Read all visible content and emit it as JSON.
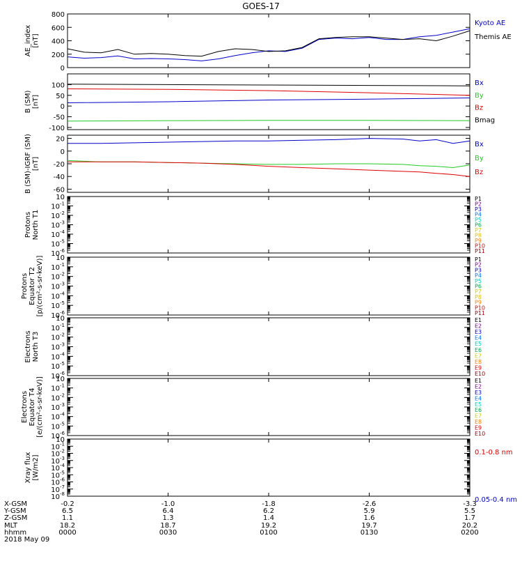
{
  "title": "GOES-17",
  "colors": {
    "black": "#000000",
    "red": "#e00000",
    "green": "#22cc22",
    "blue": "#0000cc",
    "axis": "#000000"
  },
  "chart_data": [
    {
      "id": "ae",
      "type": "line",
      "ylabel": "AE_index\n[nT]",
      "ylim": [
        0,
        800
      ],
      "yticks": [
        0,
        200,
        400,
        600,
        800
      ],
      "ytick_labels": [
        "0",
        "200",
        "400",
        "600",
        "800"
      ],
      "series": [
        {
          "name": "Kyoto AE",
          "color": "#0000cc",
          "x": [
            0,
            5,
            10,
            15,
            20,
            25,
            30,
            35,
            40,
            45,
            50,
            55,
            60,
            65,
            70,
            75,
            80,
            85,
            90,
            95,
            100,
            105,
            110,
            115,
            120
          ],
          "y": [
            160,
            140,
            150,
            175,
            130,
            135,
            130,
            120,
            100,
            130,
            180,
            220,
            250,
            240,
            290,
            420,
            440,
            430,
            450,
            420,
            420,
            460,
            480,
            530,
            580
          ]
        },
        {
          "name": "Themis AE",
          "color": "#000000",
          "x": [
            0,
            5,
            10,
            15,
            20,
            25,
            30,
            35,
            40,
            45,
            50,
            55,
            60,
            65,
            70,
            75,
            80,
            85,
            90,
            95,
            100,
            105,
            110,
            115,
            120
          ],
          "y": [
            280,
            230,
            220,
            270,
            200,
            210,
            200,
            180,
            170,
            240,
            280,
            270,
            240,
            250,
            300,
            430,
            450,
            460,
            460,
            440,
            420,
            430,
            400,
            470,
            550
          ]
        }
      ],
      "legend": [
        {
          "label": "Kyoto AE",
          "color": "#0000cc"
        },
        {
          "label": "Themis AE",
          "color": "#000000"
        }
      ]
    },
    {
      "id": "bsm",
      "type": "line",
      "ylabel": "B (SM)\n[nT]",
      "ylim": [
        -110,
        150
      ],
      "yticks": [
        -100,
        -50,
        0,
        50,
        100
      ],
      "ytick_labels": [
        "-100",
        "-50",
        "0",
        "50",
        "100"
      ],
      "series": [
        {
          "name": "Bmag",
          "color": "#000000",
          "x": [
            0,
            30,
            60,
            90,
            120
          ],
          "y": [
            102,
            100,
            98,
            96,
            94
          ]
        },
        {
          "name": "By",
          "color": "#22cc22",
          "x": [
            0,
            30,
            60,
            90,
            120
          ],
          "y": [
            -70,
            -68,
            -67,
            -67,
            -68
          ]
        },
        {
          "name": "Bz",
          "color": "#e00000",
          "x": [
            0,
            30,
            60,
            90,
            120
          ],
          "y": [
            80,
            78,
            72,
            62,
            50
          ]
        },
        {
          "name": "Bx",
          "color": "#0000cc",
          "x": [
            0,
            30,
            60,
            90,
            120
          ],
          "y": [
            15,
            20,
            28,
            32,
            38
          ]
        }
      ],
      "legend": [
        {
          "label": "Bx",
          "color": "#0000cc"
        },
        {
          "label": "By",
          "color": "#22cc22"
        },
        {
          "label": "Bz",
          "color": "#e00000"
        },
        {
          "label": "Bmag",
          "color": "#000000"
        }
      ]
    },
    {
      "id": "bigrf",
      "type": "line",
      "ylabel": "B (SM)-IGRF (SM)\n[nT]",
      "ylim": [
        -65,
        25
      ],
      "yticks": [
        -60,
        -40,
        -20,
        0,
        20
      ],
      "ytick_labels": [
        "-60",
        "-40",
        "-20",
        "0",
        "20"
      ],
      "series": [
        {
          "name": "Bx",
          "color": "#0000cc",
          "x": [
            0,
            10,
            20,
            30,
            40,
            50,
            60,
            70,
            80,
            90,
            100,
            105,
            110,
            115,
            120
          ],
          "y": [
            12,
            12,
            13,
            14,
            15,
            16,
            16,
            17,
            18,
            20,
            19,
            16,
            18,
            12,
            16
          ]
        },
        {
          "name": "By",
          "color": "#22cc22",
          "x": [
            0,
            10,
            20,
            30,
            40,
            50,
            60,
            70,
            80,
            90,
            100,
            105,
            110,
            115,
            120
          ],
          "y": [
            -15,
            -17,
            -17,
            -18,
            -19,
            -20,
            -21,
            -21,
            -20,
            -20,
            -21,
            -23,
            -24,
            -26,
            -22
          ]
        },
        {
          "name": "Bz",
          "color": "#e00000",
          "x": [
            0,
            10,
            20,
            30,
            40,
            50,
            60,
            70,
            80,
            90,
            100,
            105,
            110,
            115,
            120
          ],
          "y": [
            -17,
            -17,
            -17,
            -18,
            -19,
            -21,
            -24,
            -26,
            -28,
            -30,
            -32,
            -33,
            -35,
            -37,
            -40
          ]
        }
      ],
      "legend": [
        {
          "label": "Bx",
          "color": "#0000cc"
        },
        {
          "label": "By",
          "color": "#22cc22"
        },
        {
          "label": "Bz",
          "color": "#e00000"
        }
      ]
    },
    {
      "id": "protons_t1",
      "type": "line",
      "scale": "log",
      "ylabel": "Protons\nNorth T1",
      "ylim_exp": [
        -6,
        0
      ],
      "series": [],
      "legend": [
        {
          "label": "P1",
          "color": "#000000"
        },
        {
          "label": "P2",
          "color": "#7a0090"
        },
        {
          "label": "P3",
          "color": "#0000cc"
        },
        {
          "label": "P4",
          "color": "#0077ff"
        },
        {
          "label": "P5",
          "color": "#00cccc"
        },
        {
          "label": "P6",
          "color": "#00b050"
        },
        {
          "label": "P7",
          "color": "#cccc00"
        },
        {
          "label": "P8",
          "color": "#e0c000"
        },
        {
          "label": "P9",
          "color": "#ff8000"
        },
        {
          "label": "P10",
          "color": "#e00000"
        },
        {
          "label": "P11",
          "color": "#a00000"
        }
      ]
    },
    {
      "id": "protons_t2",
      "type": "line",
      "scale": "log",
      "ylabel": "Protons\nEquator T2\n[p/(cm²-s-sr-keV)]",
      "ylim_exp": [
        -6,
        0
      ],
      "series": [],
      "legend": [
        {
          "label": "P1",
          "color": "#000000"
        },
        {
          "label": "P2",
          "color": "#7a0090"
        },
        {
          "label": "P3",
          "color": "#0000cc"
        },
        {
          "label": "P4",
          "color": "#0077ff"
        },
        {
          "label": "P5",
          "color": "#00cccc"
        },
        {
          "label": "P6",
          "color": "#00b050"
        },
        {
          "label": "P7",
          "color": "#cccc00"
        },
        {
          "label": "P8",
          "color": "#e0c000"
        },
        {
          "label": "P9",
          "color": "#ff8000"
        },
        {
          "label": "P10",
          "color": "#e00000"
        },
        {
          "label": "P11",
          "color": "#a00000"
        }
      ]
    },
    {
      "id": "electrons_t3",
      "type": "line",
      "scale": "log",
      "ylabel": "Electrons\nNorth T3",
      "ylim_exp": [
        -6,
        0
      ],
      "series": [],
      "legend": [
        {
          "label": "E1",
          "color": "#000000"
        },
        {
          "label": "E2",
          "color": "#7a0090"
        },
        {
          "label": "E3",
          "color": "#0000cc"
        },
        {
          "label": "E4",
          "color": "#0077ff"
        },
        {
          "label": "E5",
          "color": "#00cccc"
        },
        {
          "label": "E6",
          "color": "#00b050"
        },
        {
          "label": "E7",
          "color": "#cccc00"
        },
        {
          "label": "E8",
          "color": "#ff8000"
        },
        {
          "label": "E9",
          "color": "#e00000"
        },
        {
          "label": "E10",
          "color": "#a00000"
        }
      ]
    },
    {
      "id": "electrons_t4",
      "type": "line",
      "scale": "log",
      "ylabel": "Electrons\nEquator T4\n[e/(cm²-s-sr-keV)]",
      "ylim_exp": [
        -6,
        0
      ],
      "series": [],
      "legend": [
        {
          "label": "E1",
          "color": "#000000"
        },
        {
          "label": "E2",
          "color": "#7a0090"
        },
        {
          "label": "E3",
          "color": "#0000cc"
        },
        {
          "label": "E4",
          "color": "#0077ff"
        },
        {
          "label": "E5",
          "color": "#00cccc"
        },
        {
          "label": "E6",
          "color": "#00b050"
        },
        {
          "label": "E7",
          "color": "#cccc00"
        },
        {
          "label": "E8",
          "color": "#ff8000"
        },
        {
          "label": "E9",
          "color": "#e00000"
        },
        {
          "label": "E10",
          "color": "#a00000"
        }
      ]
    },
    {
      "id": "xray",
      "type": "line",
      "scale": "log",
      "ylabel": "Xray flux\n[W/m2]",
      "ylim_exp": [
        -8,
        0
      ],
      "series": [],
      "legend": [
        {
          "label": "0.1-0.8 nm",
          "color": "#e00000"
        },
        {
          "label": "0.05-0.4 nm",
          "color": "#0000cc"
        }
      ]
    }
  ],
  "x_axis": {
    "xlim": [
      0,
      120
    ],
    "tick_positions": [
      0,
      30,
      60,
      90,
      120
    ],
    "rows": [
      {
        "label": "X-GSM",
        "values": [
          "-0.2",
          "-1.0",
          "-1.8",
          "-2.6",
          "-3.3"
        ]
      },
      {
        "label": "Y-GSM",
        "values": [
          "6.5",
          "6.4",
          "6.2",
          "5.9",
          "5.5"
        ]
      },
      {
        "label": "Z-GSM",
        "values": [
          "1.1",
          "1.3",
          "1.4",
          "1.6",
          "1.7"
        ]
      },
      {
        "label": "MLT",
        "values": [
          "18.2",
          "18.7",
          "19.2",
          "19.7",
          "20.2"
        ]
      },
      {
        "label": "hhmm",
        "values": [
          "0000",
          "0030",
          "0100",
          "0130",
          "0200"
        ]
      }
    ],
    "date": "2018 May 09"
  }
}
